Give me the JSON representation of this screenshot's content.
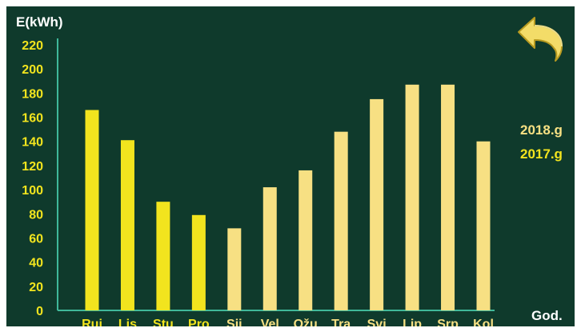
{
  "colors": {
    "background": "#0f3a2c",
    "axis": "#3fb89a",
    "label_white": "#ffffff",
    "label_yellow": "#f2e41e",
    "bar_2018": "#f7e083",
    "bar_2017": "#f2e41e",
    "back_button": "#f3dc68"
  },
  "back_button": {
    "icon": "back-arrow-icon"
  },
  "legend": {
    "placement": "right",
    "entries": [
      {
        "label": "2018.g",
        "color": "#f7e083"
      },
      {
        "label": "2017.g",
        "color": "#f2e41e"
      }
    ]
  },
  "chart_data": {
    "type": "bar",
    "ylabel": "E(kWh)",
    "xlabel": "God.",
    "ylim": [
      0,
      220
    ],
    "yticks": [
      0,
      20,
      40,
      60,
      80,
      100,
      120,
      140,
      160,
      180,
      200,
      220
    ],
    "grid": false,
    "categories": [
      "Ruj",
      "Lis",
      "Stu",
      "Pro",
      "Sij",
      "Vel",
      "Ožu",
      "Tra",
      "Svi",
      "Lip",
      "Srp",
      "Kol"
    ],
    "category_label_colors": [
      "#f2e41e",
      "#f2e41e",
      "#f2e41e",
      "#f2e41e",
      "#f7e083",
      "#f7e083",
      "#f7e083",
      "#f7e083",
      "#f7e083",
      "#f7e083",
      "#f7e083",
      "#f7e083"
    ],
    "values": [
      166,
      141,
      90,
      79,
      68,
      102,
      116,
      148,
      175,
      187,
      187,
      140
    ],
    "bar_colors": [
      "#f2e41e",
      "#f2e41e",
      "#f2e41e",
      "#f2e41e",
      "#f7e083",
      "#f7e083",
      "#f7e083",
      "#f7e083",
      "#f7e083",
      "#f7e083",
      "#f7e083",
      "#f7e083"
    ]
  }
}
